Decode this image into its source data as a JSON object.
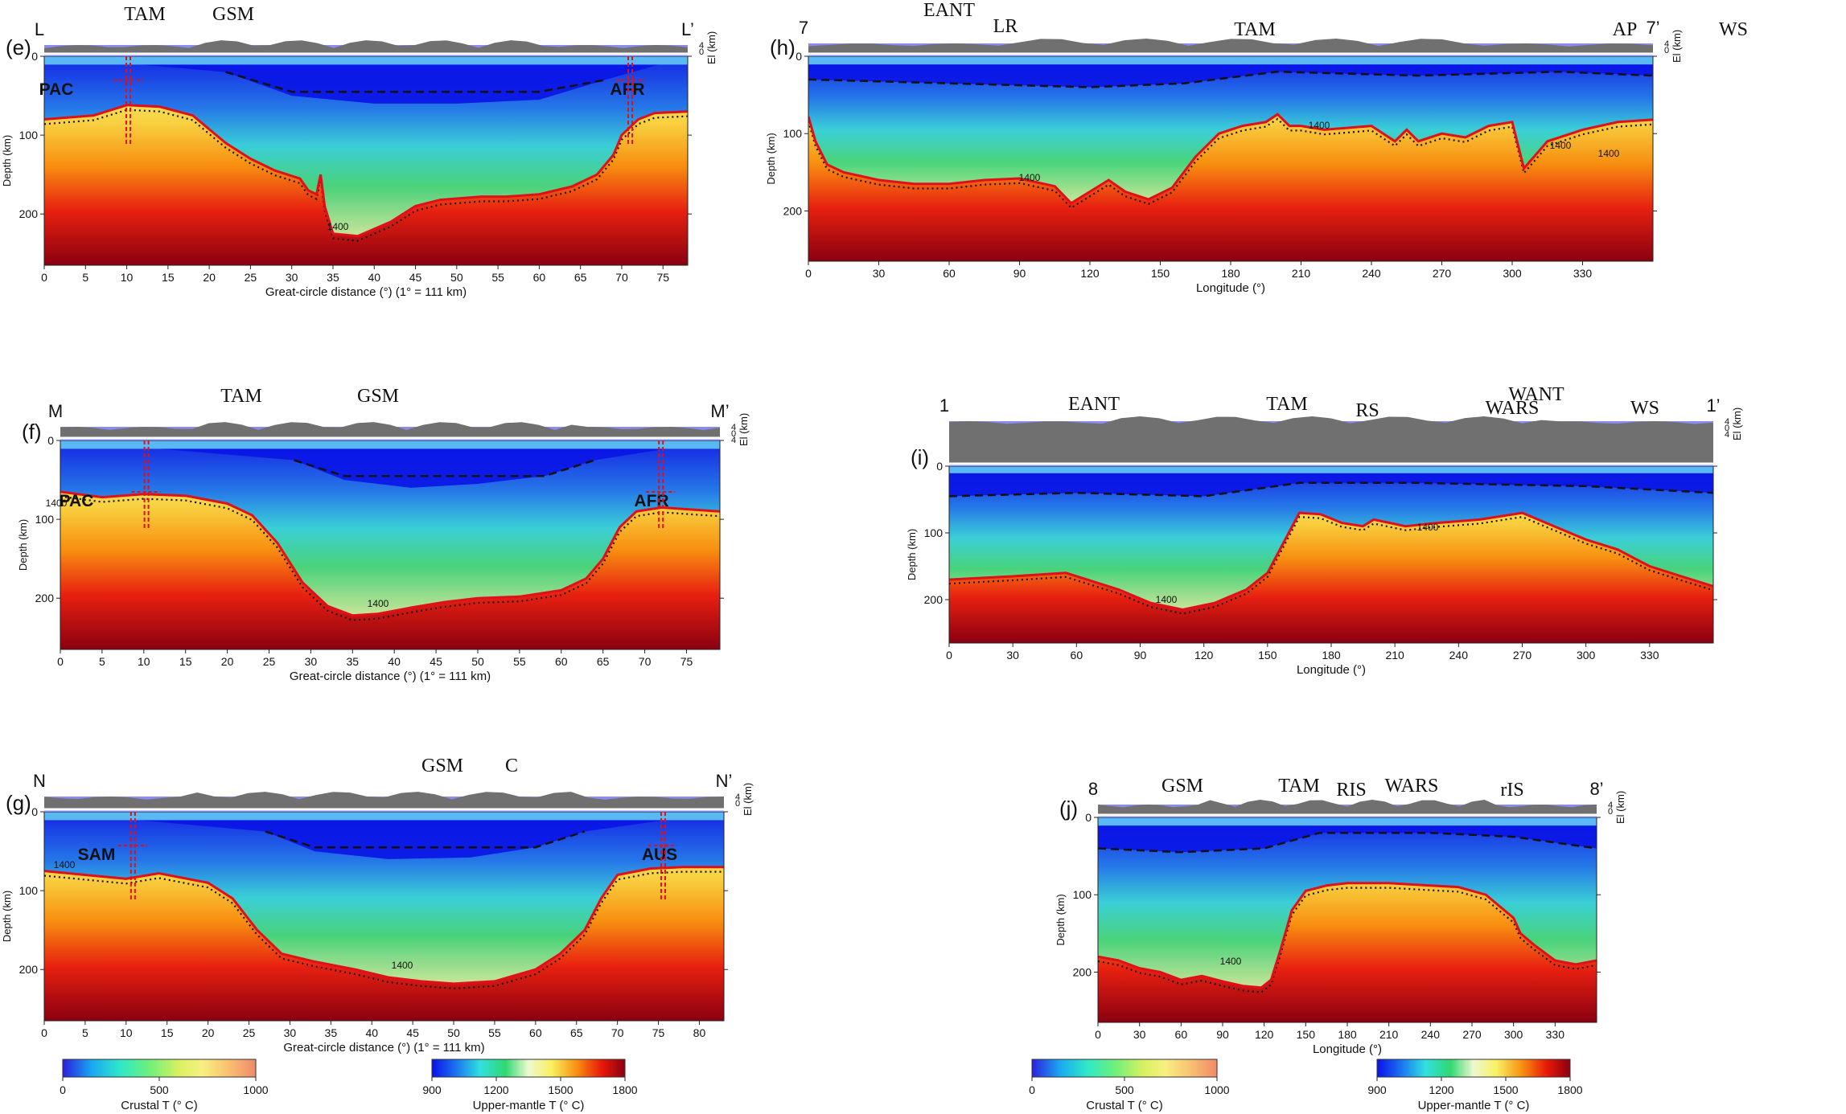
{
  "panels": [
    {
      "id": "e",
      "panel_label": "(e)",
      "start_label": "L",
      "end_label": "L’",
      "top_labels": [
        "TAM",
        "GSM"
      ],
      "plate_labels": [
        "PAC",
        "AFR"
      ],
      "ylabel": "Depth (km)",
      "elev_label": "El (km)",
      "xlabel": "Great-circle distance (°) (1° = 111 km)",
      "x_ticks": [
        "0",
        "5",
        "10",
        "15",
        "20",
        "25",
        "30",
        "35",
        "40",
        "45",
        "50",
        "55",
        "60",
        "65",
        "70",
        "75"
      ],
      "y_ticks": [
        "0",
        "100",
        "200"
      ],
      "elev_ticks": [
        "4",
        "0"
      ],
      "contour_labels": [
        "1400"
      ]
    },
    {
      "id": "f",
      "panel_label": "(f)",
      "start_label": "M",
      "end_label": "M’",
      "top_labels": [
        "TAM",
        "GSM"
      ],
      "plate_labels": [
        "PAC",
        "AFR"
      ],
      "ylabel": "Depth (km)",
      "elev_label": "El (km)",
      "xlabel": "Great-circle distance (°) (1° = 111 km)",
      "x_ticks": [
        "0",
        "5",
        "10",
        "15",
        "20",
        "25",
        "30",
        "35",
        "40",
        "45",
        "50",
        "55",
        "60",
        "65",
        "70",
        "75"
      ],
      "y_ticks": [
        "0",
        "100",
        "200"
      ],
      "elev_ticks": [
        "4",
        "0",
        "4"
      ],
      "contour_labels": [
        "1400",
        "1400"
      ]
    },
    {
      "id": "g",
      "panel_label": "(g)",
      "start_label": "N",
      "end_label": "N’",
      "top_labels": [
        "GSM",
        "C"
      ],
      "plate_labels": [
        "SAM",
        "AUS"
      ],
      "ylabel": "Depth (km)",
      "elev_label": "El (km)",
      "xlabel": "Great-circle distance (°) (1° = 111 km)",
      "x_ticks": [
        "0",
        "5",
        "10",
        "15",
        "20",
        "25",
        "30",
        "35",
        "40",
        "45",
        "50",
        "55",
        "60",
        "65",
        "70",
        "75",
        "80"
      ],
      "y_ticks": [
        "0",
        "100",
        "200"
      ],
      "elev_ticks": [
        "4",
        "0"
      ],
      "contour_labels": [
        "1400",
        "1400"
      ]
    },
    {
      "id": "h",
      "panel_label": "(h)",
      "start_label": "7",
      "end_label": "7’",
      "top_labels": [
        "EANT",
        "LR",
        "TAM",
        "AP",
        "WS"
      ],
      "plate_labels": [],
      "ylabel": "Depth (km)",
      "elev_label": "El (km)",
      "xlabel": "Longitude (°)",
      "x_ticks": [
        "0",
        "30",
        "60",
        "90",
        "120",
        "150",
        "180",
        "210",
        "240",
        "270",
        "300",
        "330"
      ],
      "y_ticks": [
        "0",
        "100",
        "200"
      ],
      "elev_ticks": [
        "4",
        "0"
      ],
      "contour_labels": [
        "1400",
        "1400",
        "1400",
        "1400"
      ]
    },
    {
      "id": "i",
      "panel_label": "(i)",
      "start_label": "1",
      "end_label": "1’",
      "top_labels": [
        "EANT",
        "TAM",
        "RS",
        "WANT",
        "WARS",
        "WS"
      ],
      "plate_labels": [],
      "ylabel": "Depth (km)",
      "elev_label": "El (km)",
      "xlabel": "Longitude (°)",
      "x_ticks": [
        "0",
        "30",
        "60",
        "90",
        "120",
        "150",
        "180",
        "210",
        "240",
        "270",
        "300",
        "330"
      ],
      "y_ticks": [
        "0",
        "100",
        "200"
      ],
      "elev_ticks": [
        "4",
        "0",
        "4"
      ],
      "contour_labels": [
        "1400",
        "1400"
      ]
    },
    {
      "id": "j",
      "panel_label": "(j)",
      "start_label": "8",
      "end_label": "8’",
      "top_labels": [
        "GSM",
        "TAM",
        "RIS",
        "WARS",
        "rIS"
      ],
      "plate_labels": [],
      "ylabel": "Depth (km)",
      "elev_label": "El (km)",
      "xlabel": "Longitude (°)",
      "x_ticks": [
        "0",
        "30",
        "60",
        "90",
        "120",
        "150",
        "180",
        "210",
        "240",
        "270",
        "300",
        "330"
      ],
      "y_ticks": [
        "0",
        "100",
        "200"
      ],
      "elev_ticks": [
        "4",
        "0"
      ],
      "contour_labels": [
        "1400"
      ]
    }
  ],
  "colorbars": {
    "crustal": {
      "label": "Crustal T (° C)",
      "ticks": [
        "0",
        "500",
        "1000"
      ],
      "colors": [
        "#2b1fe0",
        "#1aa8f0",
        "#2fe8c8",
        "#6ef07a",
        "#d8f060",
        "#f8f080",
        "#f8c070",
        "#f08a6a"
      ]
    },
    "mantle": {
      "label": "Upper-mantle T (° C)",
      "ticks": [
        "900",
        "1200",
        "1500",
        "1800"
      ],
      "colors": [
        "#0a10e8",
        "#1a70f0",
        "#30e0e0",
        "#30d870",
        "#eef8d0",
        "#f8f060",
        "#f89010",
        "#e81808",
        "#8a0010"
      ]
    }
  }
}
